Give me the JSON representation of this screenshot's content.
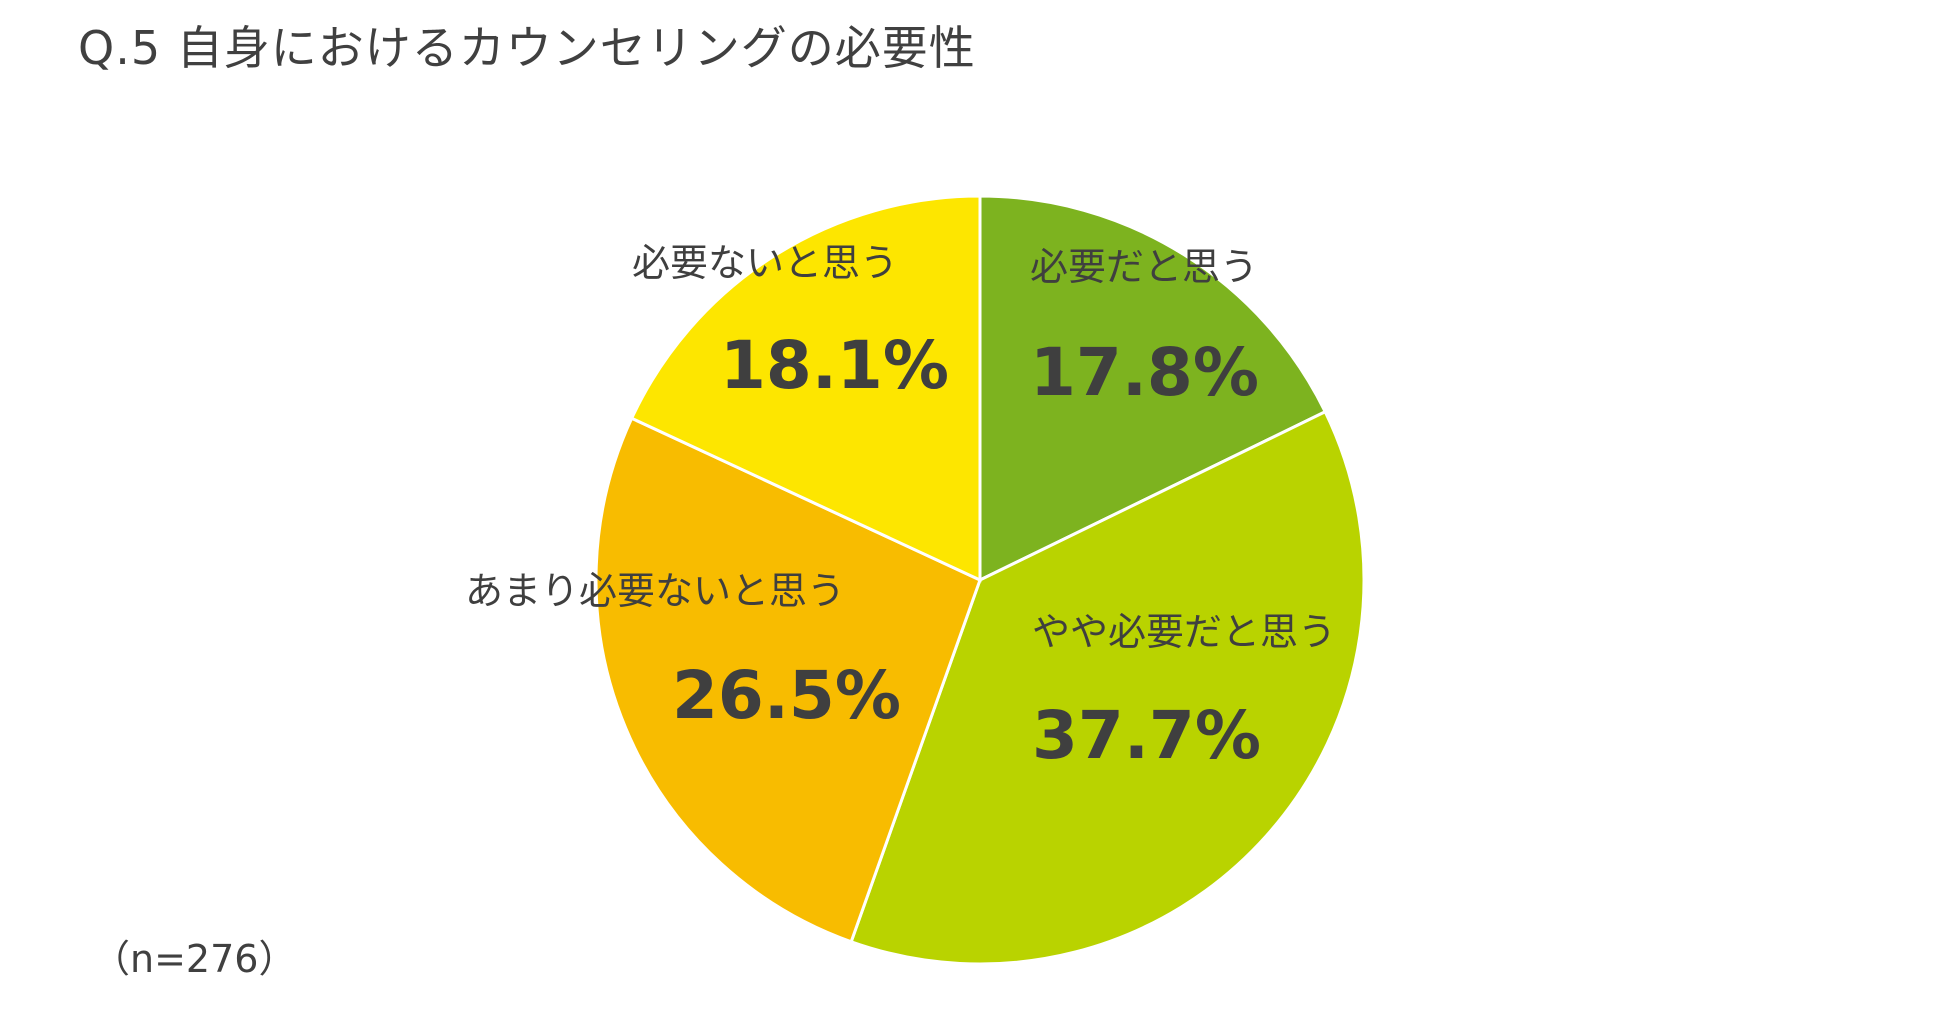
{
  "title": "Q.5 自身におけるカウンセリングの必要性",
  "sample_note": "（n=276）",
  "chart_data": {
    "type": "pie",
    "title": "Q.5 自身におけるカウンセリングの必要性",
    "start": "12 o'clock, clockwise",
    "slices": [
      {
        "label": "必要だと思う",
        "value": 17.8,
        "display": "17.8%",
        "color": "#7db31f"
      },
      {
        "label": "やや必要だと思う",
        "value": 37.7,
        "display": "37.7%",
        "color": "#b9d300"
      },
      {
        "label": "あまり必要ないと思う",
        "value": 26.5,
        "display": "26.5%",
        "color": "#f8bc00"
      },
      {
        "label": "必要ないと思う",
        "value": 18.1,
        "display": "18.1%",
        "color": "#fde600"
      }
    ]
  }
}
